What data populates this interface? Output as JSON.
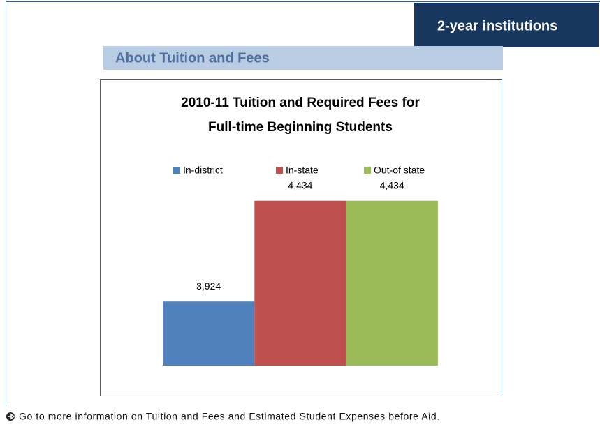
{
  "badge": "2-year institutions",
  "section_title": "About Tuition and Fees",
  "footer_link": "Go to more information on Tuition and Fees and Estimated Student Expenses before Aid.",
  "chart_data": {
    "type": "bar",
    "title": [
      "2010-11 Tuition and Required Fees for",
      "Full-time Beginning Students"
    ],
    "categories": [
      null
    ],
    "series": [
      {
        "name": "In-district",
        "color": "#4f81bd",
        "values": [
          3924
        ],
        "value_labels": [
          "3,924"
        ]
      },
      {
        "name": "In-state",
        "color": "#c0504d",
        "values": [
          4434
        ],
        "value_labels": [
          "4,434"
        ]
      },
      {
        "name": "Out-of state",
        "color": "#9bbb59",
        "values": [
          4434
        ],
        "value_labels": [
          "4,434"
        ]
      }
    ],
    "ylim": [
      3600,
      4500
    ],
    "legend": "top"
  }
}
